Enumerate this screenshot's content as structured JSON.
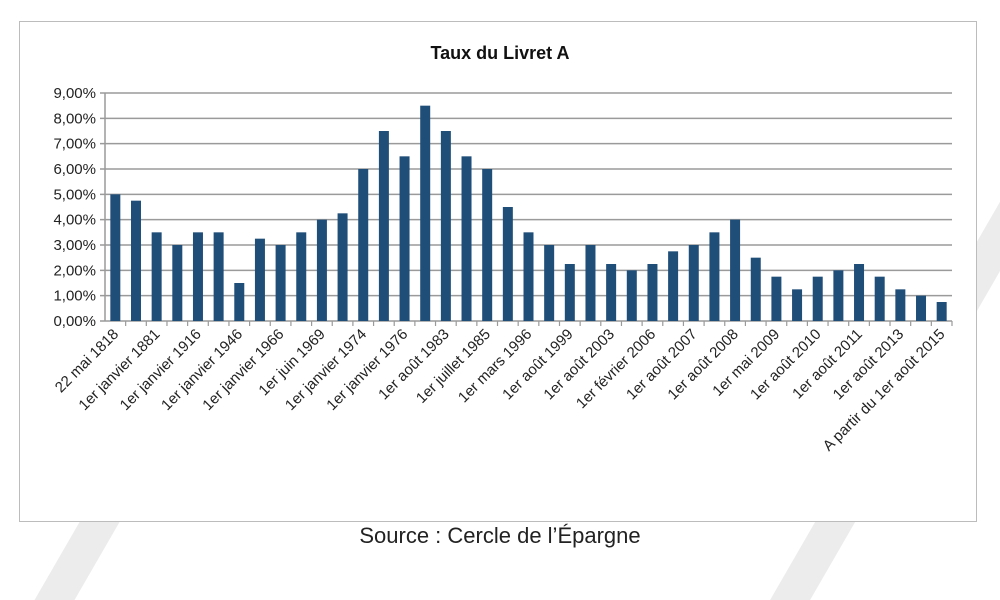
{
  "chart_data": {
    "type": "bar",
    "title": "Taux du Livret A",
    "xlabel": "",
    "ylabel": "",
    "ylim": [
      0,
      9
    ],
    "yticks": [
      "0,00%",
      "1,00%",
      "2,00%",
      "3,00%",
      "4,00%",
      "5,00%",
      "6,00%",
      "7,00%",
      "8,00%",
      "9,00%"
    ],
    "grid": true,
    "color": "#1f4e79",
    "categories": [
      "22 mai 1818",
      "",
      "1er janvier 1881",
      "",
      "1er janvier 1916",
      "",
      "1er janvier 1946",
      "",
      "1er janvier 1966",
      "",
      "1er juin 1969",
      "",
      "1er janvier 1974",
      "",
      "1er janvier 1976",
      "",
      "1er août 1983",
      "",
      "1er juillet 1985",
      "",
      "1er mars 1996",
      "",
      "1er août 1999",
      "",
      "1er août 2003",
      "",
      "1er février 2006",
      "",
      "1er août 2007",
      "",
      "1er août 2008",
      "",
      "1er mai 2009",
      "",
      "1er août 2010",
      "",
      "1er août 2011",
      "",
      "1er août 2013",
      "",
      "A partir du 1er août 2015"
    ],
    "values": [
      5.0,
      4.75,
      3.5,
      3.0,
      3.5,
      3.5,
      1.5,
      3.25,
      3.0,
      3.5,
      4.0,
      4.25,
      6.0,
      7.5,
      6.5,
      8.5,
      7.5,
      6.5,
      6.0,
      4.5,
      3.5,
      3.0,
      2.25,
      3.0,
      2.25,
      2.0,
      2.25,
      2.75,
      3.0,
      3.5,
      4.0,
      2.5,
      1.75,
      1.25,
      1.75,
      2.0,
      2.25,
      1.75,
      1.25,
      1.0,
      0.75
    ]
  },
  "source": "Source : Cercle de l’Épargne"
}
